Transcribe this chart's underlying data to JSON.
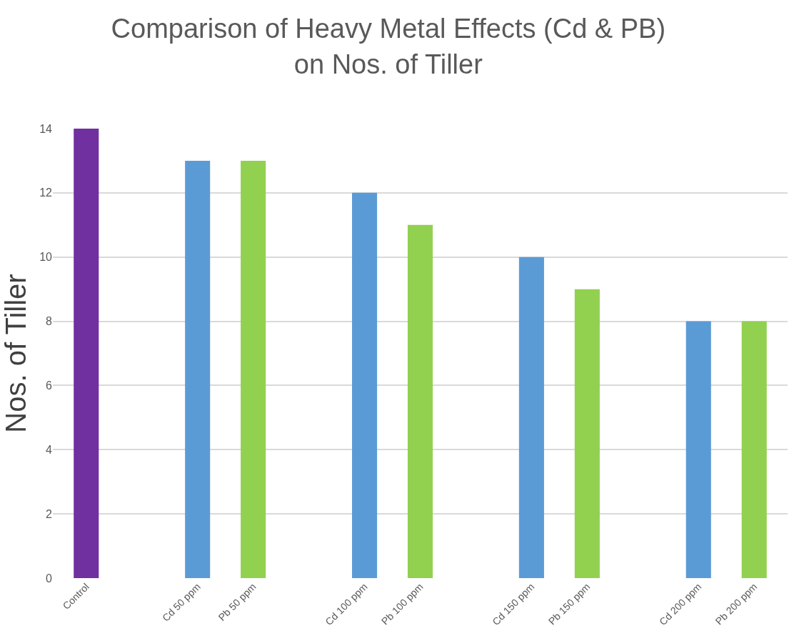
{
  "chart_data": {
    "type": "bar",
    "title": "Comparison of Heavy Metal Effects (Cd & PB)\non Nos. of Tiller",
    "ylabel": "Nos. of Tiller",
    "categories": [
      "Control",
      null,
      "Cd 50 ppm",
      "Pb 50 ppm",
      null,
      "Cd 100 ppm",
      "Pb 100 ppm",
      null,
      "Cd 150 ppm",
      "Pb 150 ppm",
      null,
      "Cd 200 ppm",
      "Pb 200 ppm"
    ],
    "values": [
      14,
      null,
      13,
      13,
      null,
      12,
      11,
      null,
      10,
      9,
      null,
      8,
      8
    ],
    "colors": [
      "#7030a0",
      "#5b9bd5",
      "#5b9bd5",
      "#92d050",
      "#5b9bd5",
      "#5b9bd5",
      "#92d050",
      "#5b9bd5",
      "#5b9bd5",
      "#92d050",
      "#5b9bd5",
      "#5b9bd5",
      "#92d050"
    ],
    "ylim": [
      0,
      14
    ],
    "yticks": [
      0,
      2,
      4,
      6,
      8,
      10,
      12,
      14
    ],
    "grid": "y"
  }
}
